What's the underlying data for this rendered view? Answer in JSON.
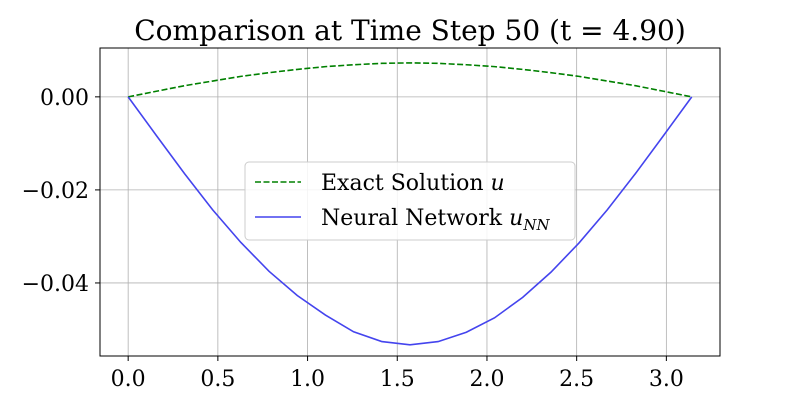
{
  "chart_data": {
    "type": "line",
    "title": "Comparison at Time Step 50 (t = 4.90)",
    "xlabel": "",
    "ylabel": "",
    "xlim": [
      -0.157,
      3.299
    ],
    "ylim": [
      -0.0557,
      0.0105
    ],
    "grid": true,
    "legend_position": "center",
    "x_ticks": [
      0.0,
      0.5,
      1.0,
      1.5,
      2.0,
      2.5,
      3.0
    ],
    "x_tick_labels": [
      "0.0",
      "0.5",
      "1.0",
      "1.5",
      "2.0",
      "2.5",
      "3.0"
    ],
    "y_ticks": [
      0.0,
      -0.02,
      -0.04
    ],
    "y_tick_labels": [
      "0.00",
      "−0.02",
      "−0.04"
    ],
    "series": [
      {
        "name": "Exact Solution u",
        "name_text": "Exact Solution ",
        "name_math": "u",
        "color": "#008000",
        "dash": "dashed",
        "x": [
          0.0,
          0.1571,
          0.3142,
          0.4712,
          0.6283,
          0.7854,
          0.9425,
          1.0996,
          1.2566,
          1.4137,
          1.5708,
          1.7279,
          1.885,
          2.042,
          2.1991,
          2.3562,
          2.5133,
          2.6704,
          2.8274,
          2.9845,
          3.1416
        ],
        "values": [
          0.0,
          0.0012,
          0.0024,
          0.0034,
          0.0044,
          0.0052,
          0.0059,
          0.0065,
          0.0069,
          0.0072,
          0.0073,
          0.0072,
          0.0069,
          0.0065,
          0.0059,
          0.0052,
          0.0044,
          0.0034,
          0.0024,
          0.0012,
          0.0
        ]
      },
      {
        "name": "Neural Network u_NN",
        "name_text": "Neural Network ",
        "name_math": "u",
        "name_sub": "NN",
        "color": "#4444ee",
        "dash": "solid",
        "x": [
          0.0,
          0.1571,
          0.3142,
          0.4712,
          0.6283,
          0.7854,
          0.9425,
          1.0996,
          1.2566,
          1.4137,
          1.5708,
          1.7279,
          1.885,
          2.042,
          2.1991,
          2.3562,
          2.5133,
          2.6704,
          2.8274,
          2.9845,
          3.1416
        ],
        "values": [
          0.0,
          -0.0083,
          -0.0165,
          -0.0243,
          -0.0313,
          -0.0375,
          -0.0427,
          -0.0469,
          -0.0505,
          -0.0526,
          -0.0533,
          -0.0526,
          -0.0506,
          -0.0475,
          -0.0431,
          -0.0377,
          -0.0314,
          -0.0243,
          -0.0165,
          -0.0083,
          0.0
        ]
      }
    ]
  }
}
